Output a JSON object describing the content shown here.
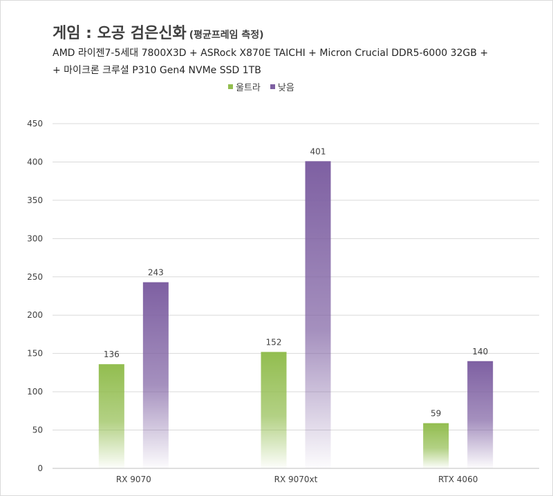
{
  "chart_data": {
    "type": "bar",
    "title": "게임 : 오공 검은신화",
    "title_note": "(평균프레임 측정)",
    "subtitle_line1": "AMD 라이젠7-5세대 7800X3D + ASRock X870E TAICHI + Micron Crucial DDR5-6000 32GB +",
    "subtitle_line2": "+ 마이크론 크루셜 P310 Gen4 NVMe SSD 1TB",
    "categories": [
      "RX 9070",
      "RX 9070xt",
      "RTX 4060"
    ],
    "series": [
      {
        "name": "울트라",
        "values": [
          136,
          152,
          59
        ],
        "color": "#92bd4f"
      },
      {
        "name": "낮음",
        "values": [
          243,
          401,
          140
        ],
        "color": "#7e60a2"
      }
    ],
    "ylim": [
      0,
      450
    ],
    "yticks": [
      0,
      50,
      100,
      150,
      200,
      250,
      300,
      350,
      400,
      450
    ],
    "grid": true,
    "legend_position": "top"
  }
}
